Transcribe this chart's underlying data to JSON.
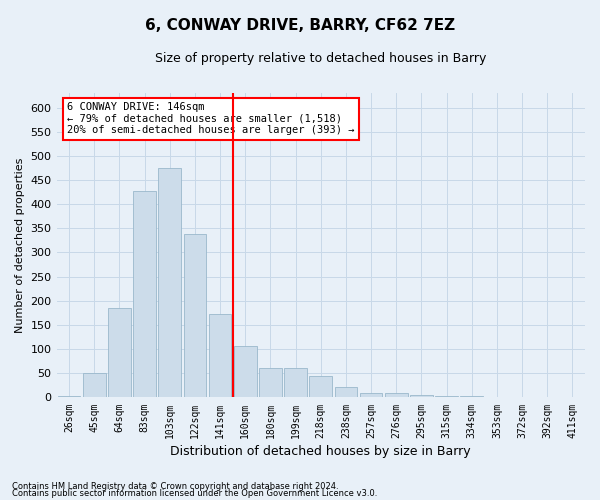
{
  "title": "6, CONWAY DRIVE, BARRY, CF62 7EZ",
  "subtitle": "Size of property relative to detached houses in Barry",
  "xlabel": "Distribution of detached houses by size in Barry",
  "ylabel": "Number of detached properties",
  "categories": [
    "26sqm",
    "45sqm",
    "64sqm",
    "83sqm",
    "103sqm",
    "122sqm",
    "141sqm",
    "160sqm",
    "180sqm",
    "199sqm",
    "218sqm",
    "238sqm",
    "257sqm",
    "276sqm",
    "295sqm",
    "315sqm",
    "334sqm",
    "353sqm",
    "372sqm",
    "392sqm",
    "411sqm"
  ],
  "values": [
    4,
    50,
    185,
    428,
    475,
    338,
    172,
    107,
    60,
    60,
    45,
    22,
    10,
    10,
    6,
    4,
    2,
    1,
    1,
    1,
    1
  ],
  "bar_color": "#ccdcea",
  "bar_edge_color": "#9ab8cc",
  "grid_color": "#c8d8e8",
  "background_color": "#e8f0f8",
  "vline_color": "red",
  "annotation_line1": "6 CONWAY DRIVE: 146sqm",
  "annotation_line2": "← 79% of detached houses are smaller (1,518)",
  "annotation_line3": "20% of semi-detached houses are larger (393) →",
  "annotation_box_color": "white",
  "annotation_box_edge_color": "red",
  "ylim": [
    0,
    630
  ],
  "yticks": [
    0,
    50,
    100,
    150,
    200,
    250,
    300,
    350,
    400,
    450,
    500,
    550,
    600
  ],
  "footnote1": "Contains HM Land Registry data © Crown copyright and database right 2024.",
  "footnote2": "Contains public sector information licensed under the Open Government Licence v3.0."
}
